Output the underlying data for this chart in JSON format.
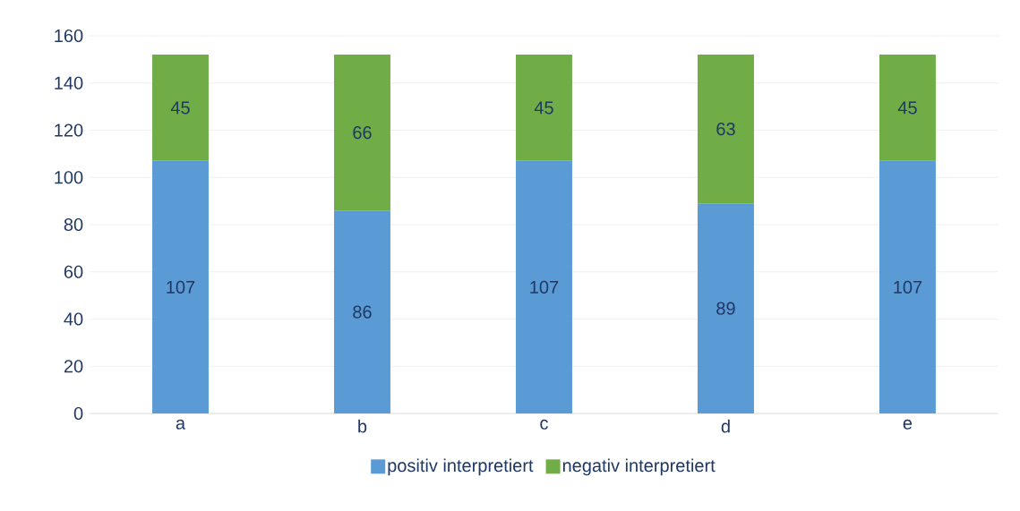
{
  "chart_data": {
    "type": "bar",
    "stacked": true,
    "categories": [
      "a",
      "b",
      "c",
      "d",
      "e"
    ],
    "series": [
      {
        "name": "positiv interpretiert",
        "color": "#5b9bd5",
        "values": [
          107,
          86,
          107,
          89,
          107
        ]
      },
      {
        "name": "negativ interpretiert",
        "color": "#70ad47",
        "values": [
          45,
          66,
          45,
          63,
          45
        ]
      }
    ],
    "ylim": [
      0,
      160
    ],
    "yticks": [
      0,
      20,
      40,
      60,
      80,
      100,
      120,
      140,
      160
    ],
    "grid": "y",
    "legend": "bottom",
    "data_labels": true
  }
}
